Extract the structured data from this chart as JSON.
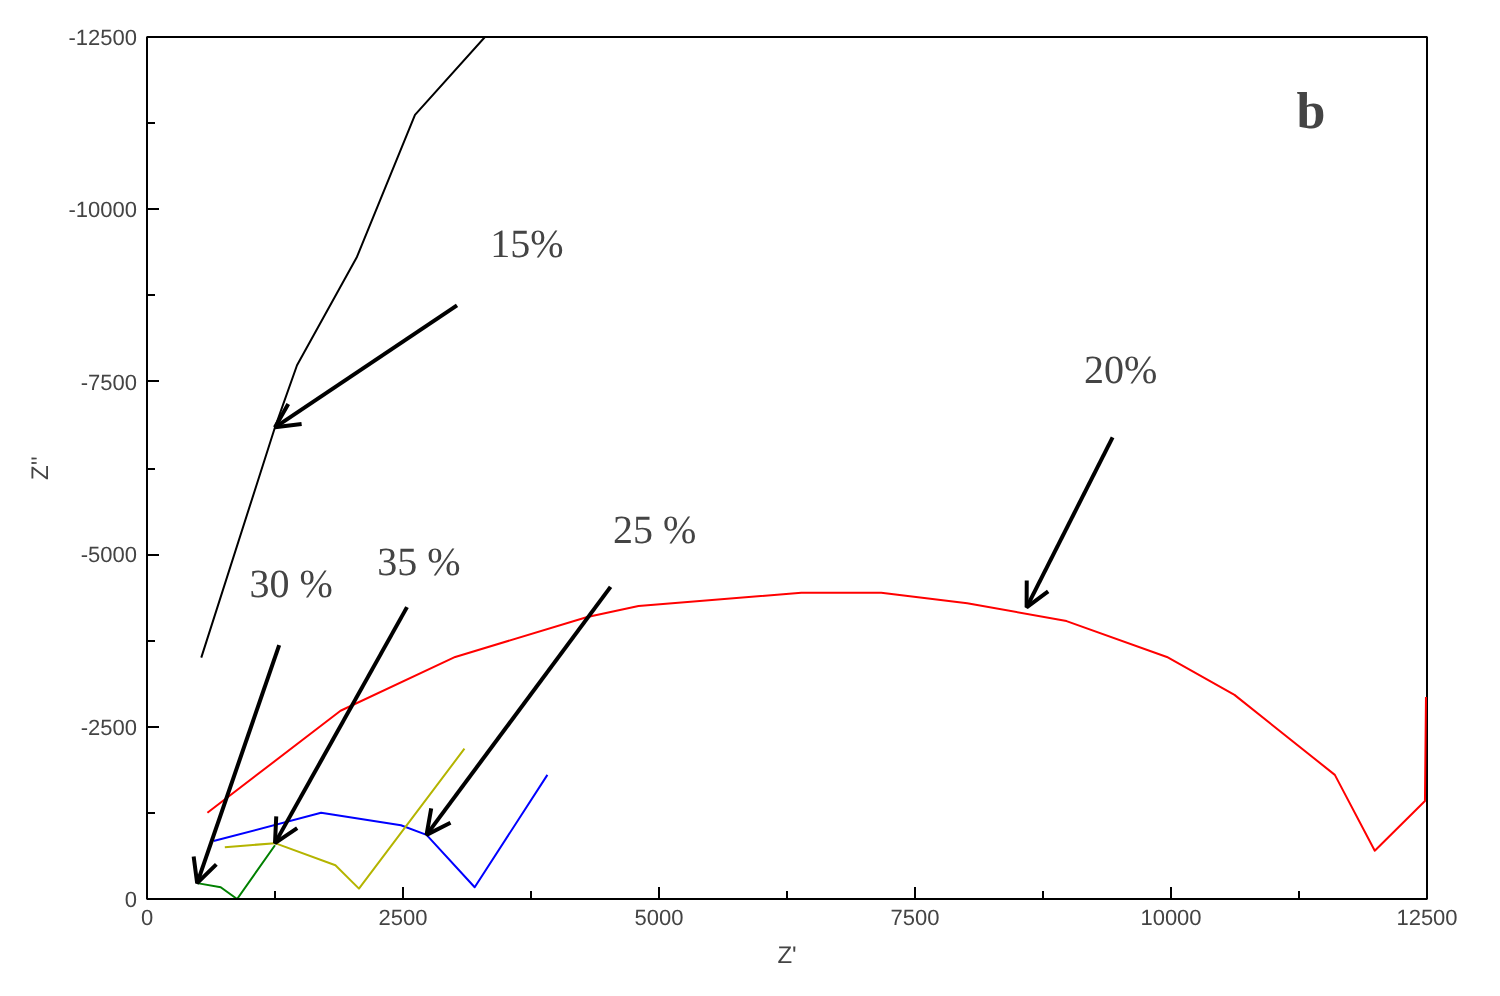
{
  "chart_data": {
    "type": "line",
    "xlabel": "Z'",
    "ylabel": "Z''",
    "xlim": [
      0,
      12500
    ],
    "xticks": [
      0,
      2500,
      5000,
      7500,
      10000,
      12500
    ],
    "ylim": [
      0,
      -12500
    ],
    "yticks": [
      0,
      -2500,
      -5000,
      -7500,
      -10000,
      -12500
    ],
    "grid": false,
    "marker": "none",
    "line_style": "solid",
    "series": [
      {
        "color": "#000000",
        "x": [
          530,
          1250,
          1465,
          2050,
          2617,
          3300
        ],
        "values": [
          -3500,
          -6840,
          -7740,
          -9310,
          -11370,
          -12500
        ]
      },
      {
        "color": "#ff0000",
        "x": [
          590,
          1890,
          3010,
          4300,
          4800,
          6390,
          7170,
          8010,
          8980,
          9960,
          10620,
          11600,
          11990,
          12480,
          12490
        ],
        "values": [
          -1250,
          -2730,
          -3510,
          -4090,
          -4250,
          -4440,
          -4440,
          -4290,
          -4030,
          -3510,
          -2960,
          -1800,
          -700,
          -1420,
          -2930
        ]
      },
      {
        "color": "#0000ff",
        "x": [
          650,
          1700,
          2480,
          2730,
          3200,
          3910
        ],
        "values": [
          -840,
          -1250,
          -1070,
          -930,
          -170,
          -1800
        ]
      },
      {
        "color": "#008000",
        "x": [
          490,
          720,
          880,
          1250
        ],
        "values": [
          -230,
          -170,
          0,
          -780
        ]
      },
      {
        "color": "#b4b400",
        "x": [
          760,
          1250,
          1840,
          2070,
          3100
        ],
        "values": [
          -750,
          -810,
          -490,
          -150,
          -2180
        ]
      }
    ],
    "annotations": [
      {
        "text": "15%",
        "x": 1250,
        "y": -6840
      },
      {
        "text": "20%",
        "x": 8590,
        "y": -4230
      },
      {
        "text": "25 %",
        "x": 2730,
        "y": -930
      },
      {
        "text": "30 %",
        "x": 490,
        "y": -230
      },
      {
        "text": "35 %",
        "x": 1250,
        "y": -810
      },
      "b"
    ]
  }
}
